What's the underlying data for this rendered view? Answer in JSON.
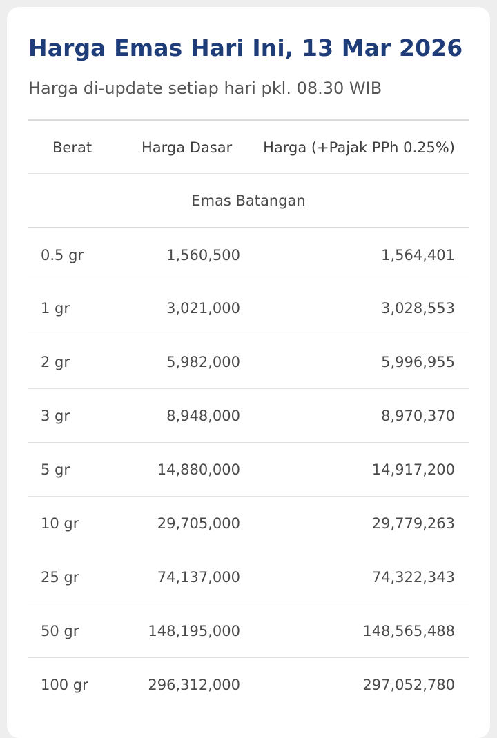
{
  "title": "Harga Emas Hari Ini, 13 Mar 2026",
  "subtitle": "Harga di-update setiap hari pkl. 08.30 WIB",
  "table": {
    "headers": {
      "berat": "Berat",
      "harga_dasar": "Harga Dasar",
      "harga_pajak": "Harga (+Pajak PPh 0.25%)"
    },
    "section": "Emas Batangan",
    "rows": [
      {
        "berat": "0.5 gr",
        "harga_dasar": "1,560,500",
        "harga_pajak": "1,564,401"
      },
      {
        "berat": "1 gr",
        "harga_dasar": "3,021,000",
        "harga_pajak": "3,028,553"
      },
      {
        "berat": "2 gr",
        "harga_dasar": "5,982,000",
        "harga_pajak": "5,996,955"
      },
      {
        "berat": "3 gr",
        "harga_dasar": "8,948,000",
        "harga_pajak": "8,970,370"
      },
      {
        "berat": "5 gr",
        "harga_dasar": "14,880,000",
        "harga_pajak": "14,917,200"
      },
      {
        "berat": "10 gr",
        "harga_dasar": "29,705,000",
        "harga_pajak": "29,779,263"
      },
      {
        "berat": "25 gr",
        "harga_dasar": "74,137,000",
        "harga_pajak": "74,322,343"
      },
      {
        "berat": "50 gr",
        "harga_dasar": "148,195,000",
        "harga_pajak": "148,565,488"
      },
      {
        "berat": "100 gr",
        "harga_dasar": "296,312,000",
        "harga_pajak": "297,052,780"
      }
    ]
  },
  "colors": {
    "title": "#1d3c78",
    "text": "#4a4a4a",
    "divider": "#e3e3e3",
    "background": "#eeeeee",
    "card": "#ffffff"
  }
}
